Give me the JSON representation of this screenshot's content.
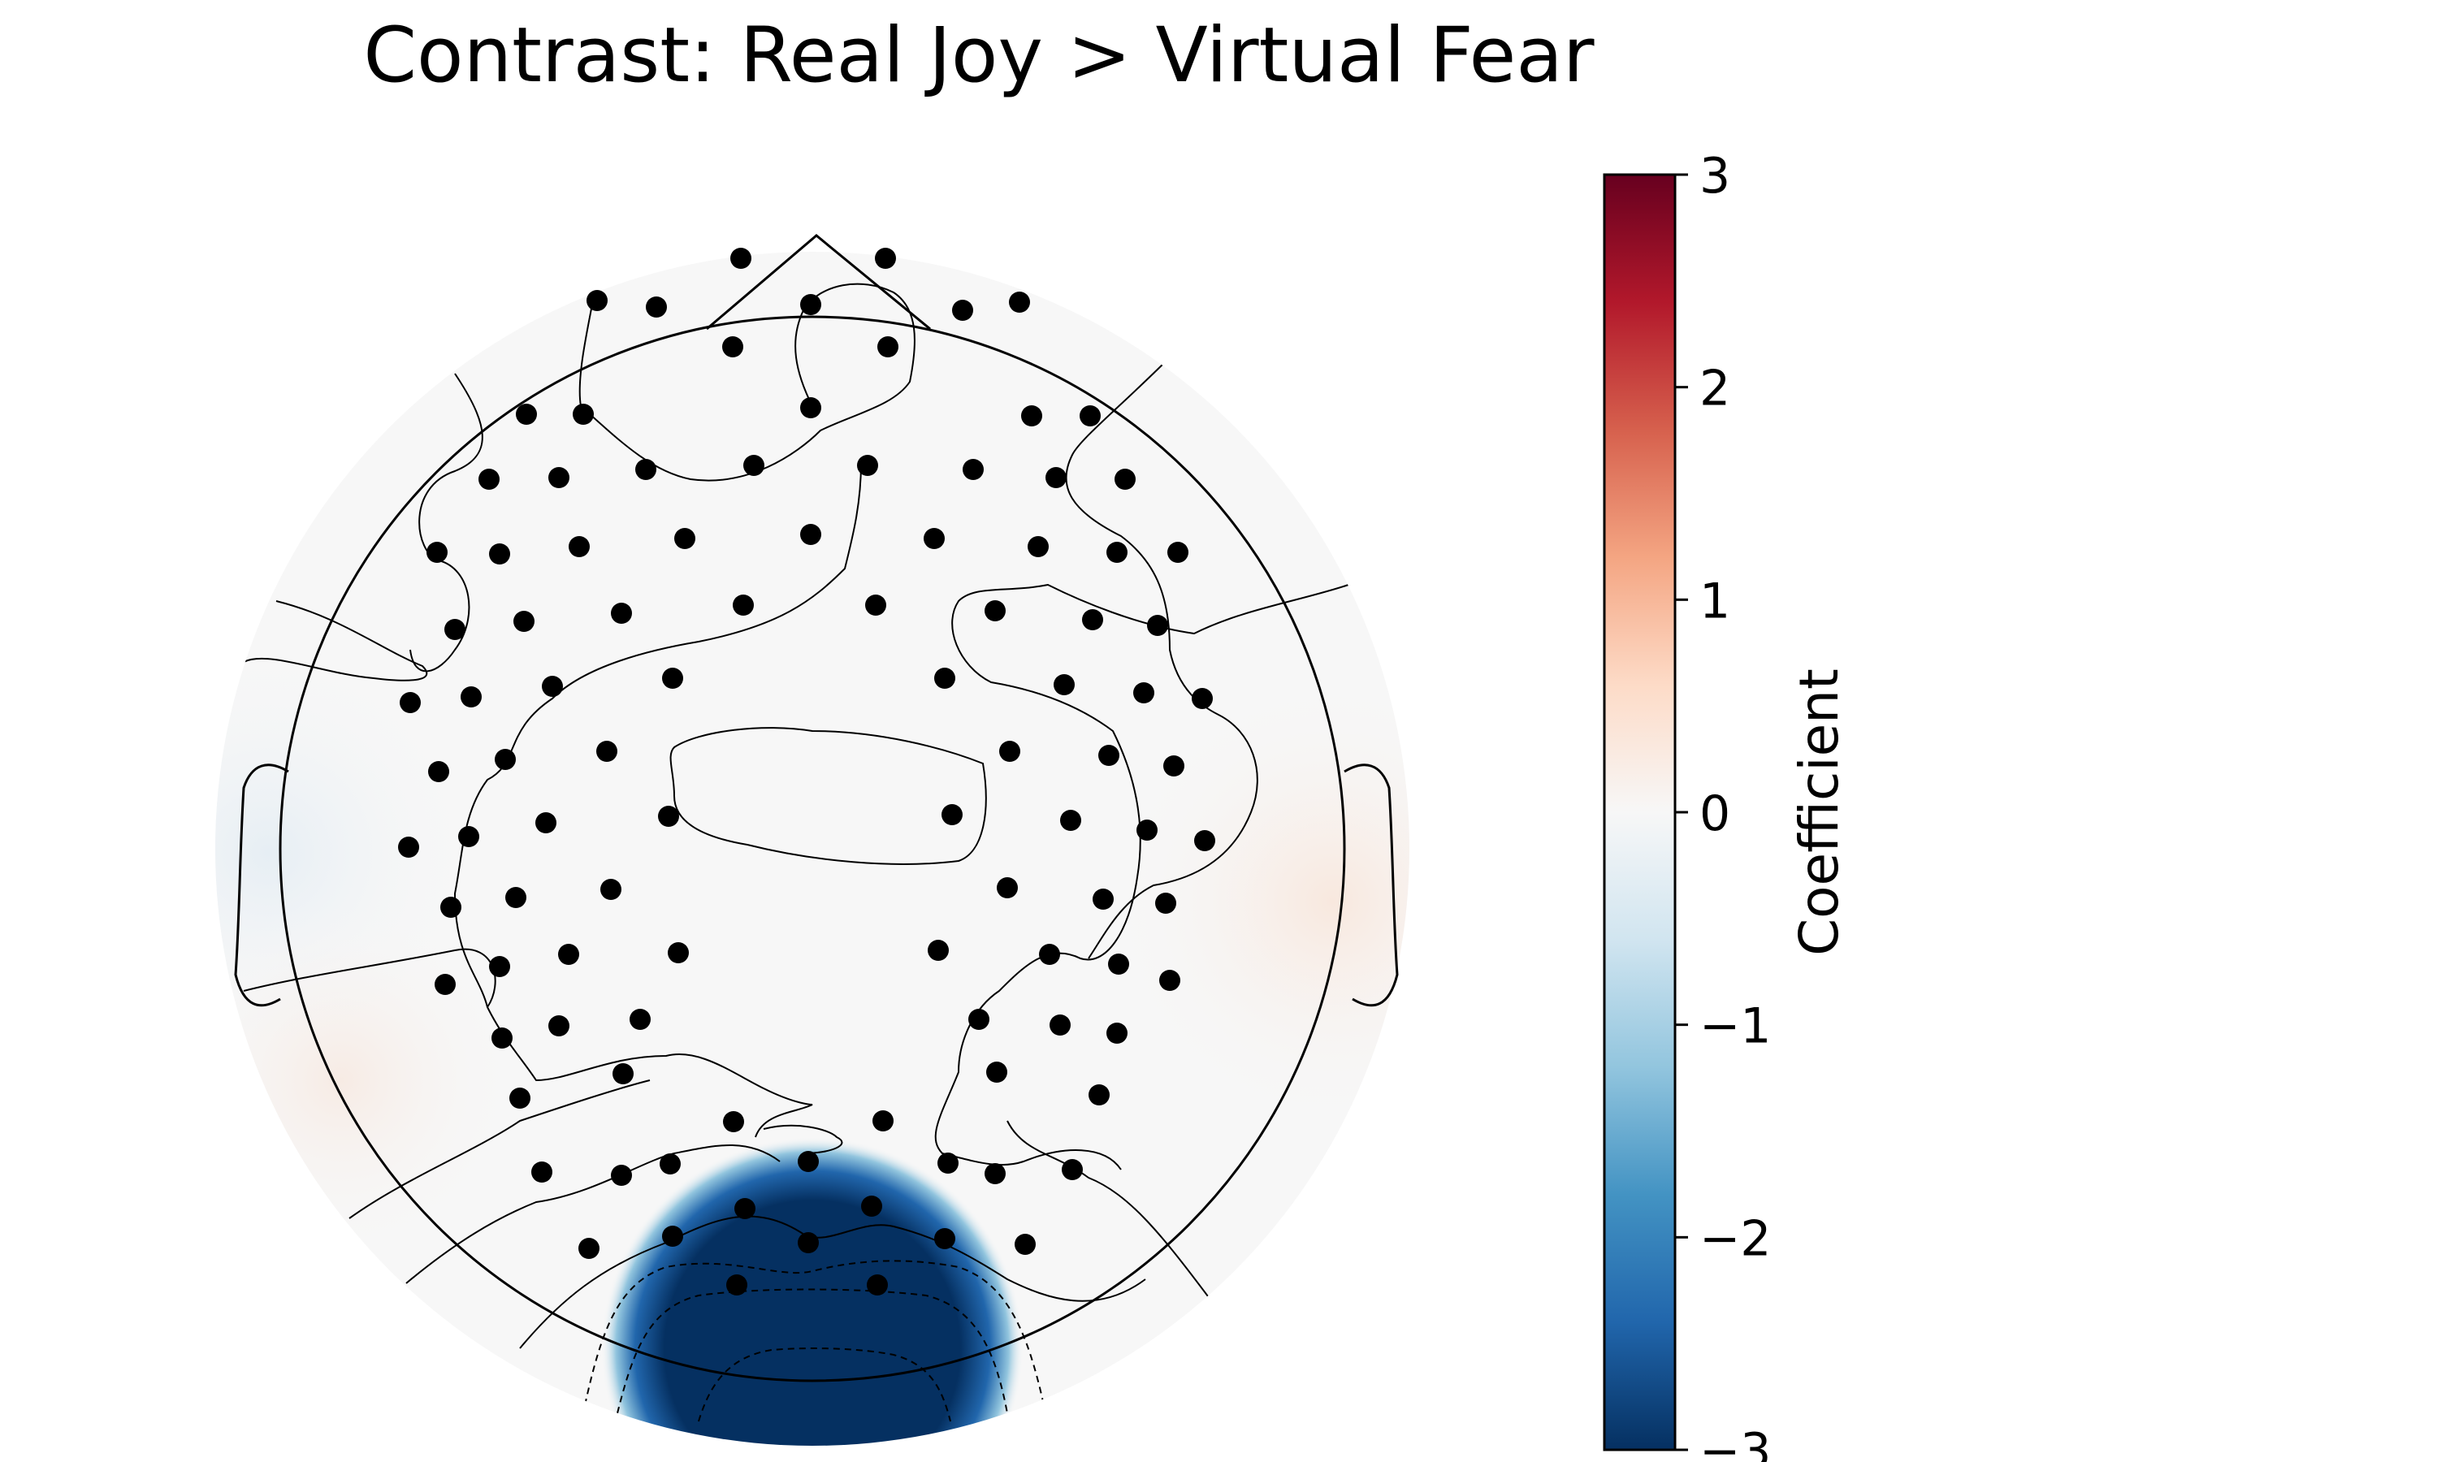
{
  "chart_data": {
    "type": "heatmap",
    "title": "Contrast: Real Joy > Virtual Fear",
    "colorbar": {
      "label": "Coefficient",
      "range": [
        -3,
        3
      ],
      "ticks": [
        3,
        2,
        1,
        0,
        -1,
        -2,
        -3
      ],
      "tick_labels": [
        "3",
        "2",
        "1",
        "0",
        "−1",
        "−2",
        "−3"
      ],
      "colormap": [
        "#053061",
        "#2166ac",
        "#4393c3",
        "#92c5de",
        "#d1e5f0",
        "#f7f7f7",
        "#fddbc7",
        "#f4a582",
        "#d6604d",
        "#b2182b",
        "#67001f"
      ]
    },
    "minimum_region": {
      "location": "occipital",
      "value": -3
    }
  }
}
